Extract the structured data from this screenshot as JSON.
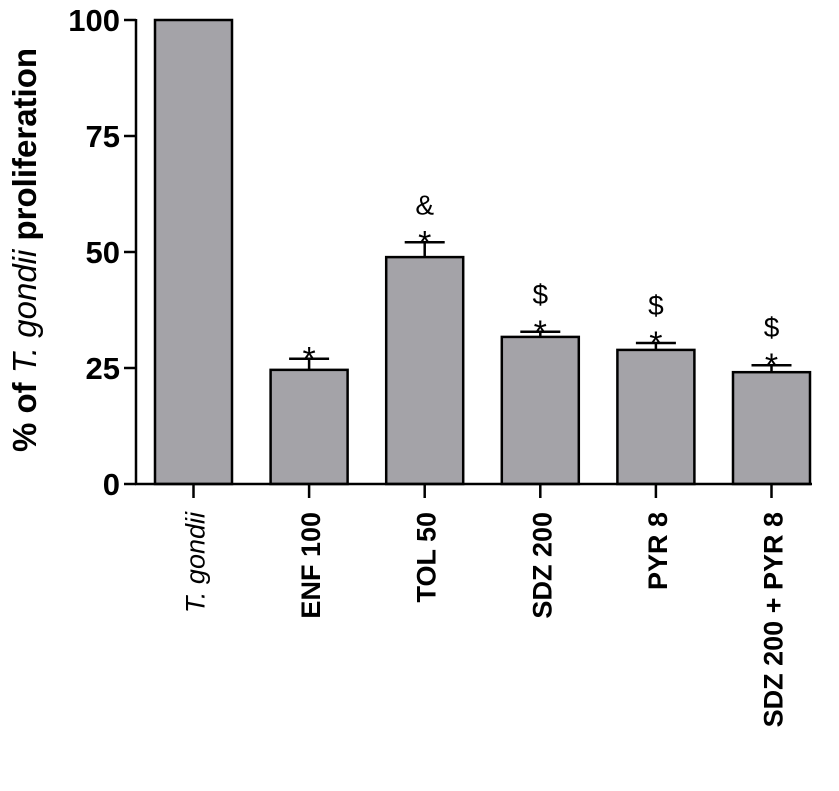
{
  "chart_data": {
    "type": "bar",
    "title": "",
    "xlabel": "",
    "ylabel": "% of T. gondii proliferation",
    "ylabel_parts": {
      "prefix": "% of ",
      "italic": "T. gondii",
      "suffix": " proliferation"
    },
    "ylim": [
      0,
      100
    ],
    "yticks": [
      0,
      25,
      50,
      75,
      100
    ],
    "grid": false,
    "legend": null,
    "categories": [
      "T. gondii",
      "ENF 100",
      "TOL 50",
      "SDZ 200",
      "PYR 8",
      "SDZ 200 + PYR 8"
    ],
    "category_italic": [
      true,
      false,
      false,
      false,
      false,
      false
    ],
    "values": [
      100,
      24.6,
      48.9,
      31.7,
      28.9,
      24.1
    ],
    "errors": [
      0,
      2.4,
      3.2,
      1.1,
      1.5,
      1.5
    ],
    "annotations": [
      [],
      [
        "*"
      ],
      [
        "*",
        "&"
      ],
      [
        "*",
        "$"
      ],
      [
        "*",
        "$"
      ],
      [
        "*",
        "$"
      ]
    ],
    "bar_color": "#a4a3a8",
    "edge_color": "#000000"
  }
}
